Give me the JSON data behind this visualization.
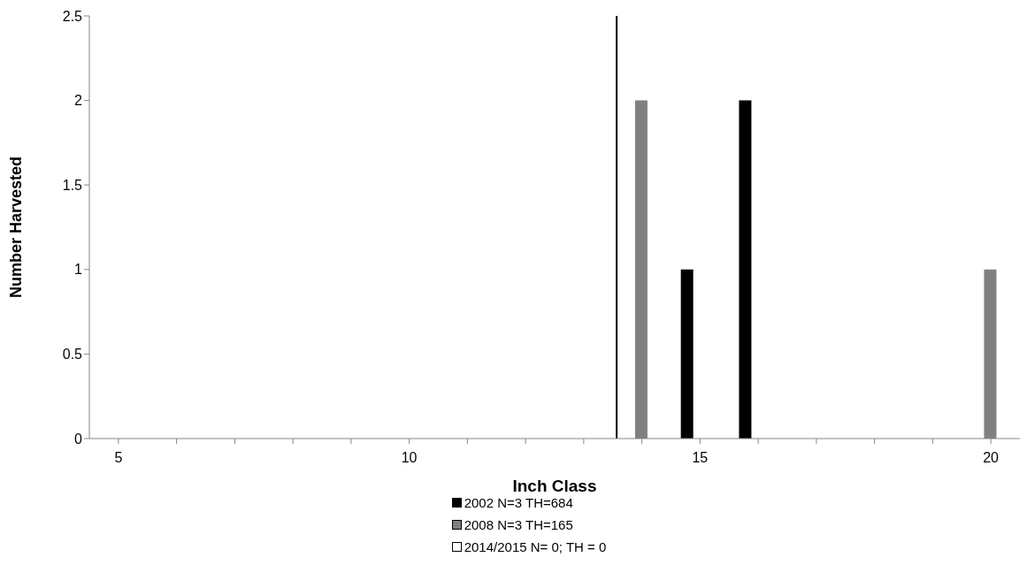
{
  "chart_data": {
    "type": "bar",
    "xlabel": "Inch Class",
    "ylabel": "Number Harvested",
    "categories": [
      "5",
      null,
      null,
      null,
      null,
      "10",
      null,
      null,
      null,
      null,
      "15",
      null,
      null,
      null,
      null,
      "20"
    ],
    "series": [
      {
        "name": "2002 N=3 TH=684",
        "color": "#000000",
        "values": [
          0,
          0,
          0,
          0,
          0,
          0,
          0,
          0,
          0,
          0,
          1,
          2,
          0,
          0,
          0,
          0
        ]
      },
      {
        "name": "2008 N=3 TH=165",
        "color": "#808080",
        "values": [
          0,
          0,
          0,
          0,
          0,
          0,
          0,
          0,
          0,
          2,
          0,
          0,
          0,
          0,
          0,
          1
        ]
      },
      {
        "name": "2014/2015 N= 0; TH = 0",
        "color": "#ffffff",
        "values": [
          0,
          0,
          0,
          0,
          0,
          0,
          0,
          0,
          0,
          0,
          0,
          0,
          0,
          0,
          0,
          0
        ]
      }
    ],
    "ylim": [
      0,
      2.5
    ],
    "yticks": [
      0,
      0.5,
      1,
      1.5,
      2,
      2.5
    ],
    "grid": false,
    "legend": "bottom"
  }
}
